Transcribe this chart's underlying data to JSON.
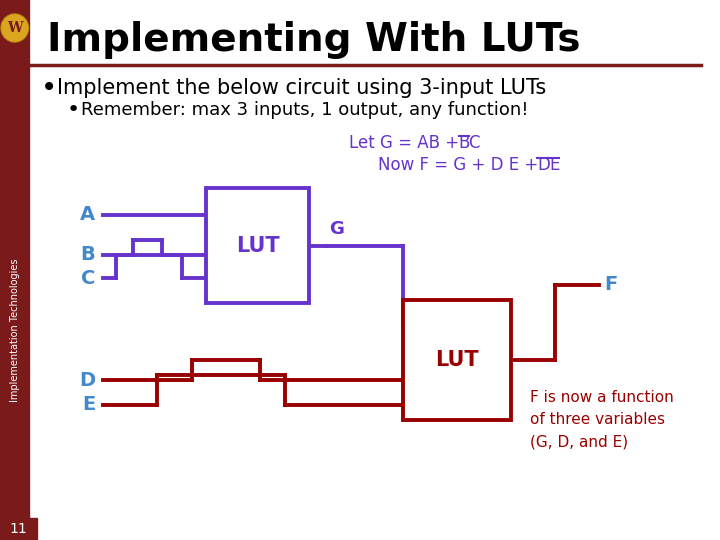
{
  "title": "Implementing With LUTs",
  "sidebar_text": "Implementation Technologies",
  "bullet1": "Implement the below circuit using 3-input LUTs",
  "bullet2": "Remember: max 3 inputs, 1 output, any function!",
  "lut1_label": "LUT",
  "lut2_label": "LUT",
  "g_label": "G",
  "f_label": "F",
  "a_label": "A",
  "b_label": "B",
  "c_label": "C",
  "d_label": "D",
  "e_label": "E",
  "note": "F is now a function\nof three variables\n(G, D, and E)",
  "slide_number": "11",
  "bg_color": "#FFFFFF",
  "sidebar_color": "#7B1A1A",
  "title_color": "#000000",
  "header_line_color": "#7B1A1A",
  "lut1_color": "#6633CC",
  "lut2_color": "#990000",
  "input_label_color": "#4488CC",
  "g_label_color": "#6633CC",
  "f_label_color": "#4488CC",
  "note_color": "#990000",
  "eq_color": "#6633CC"
}
